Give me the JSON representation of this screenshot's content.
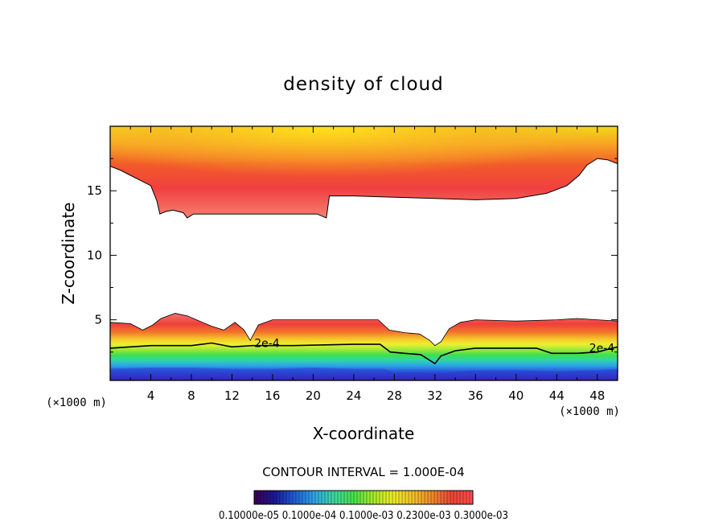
{
  "chart_data": {
    "type": "heatmap",
    "title": "density of cloud",
    "xlabel": "X-coordinate",
    "ylabel": "Z-coordinate",
    "x_unit_left": "(×1000 m)",
    "x_unit_right": "(×1000 m)",
    "xlim": [
      0,
      50
    ],
    "ylim": [
      0.3,
      20
    ],
    "x_ticks": [
      4,
      8,
      12,
      16,
      20,
      24,
      28,
      32,
      36,
      40,
      44,
      48
    ],
    "y_ticks": [
      5,
      10,
      15
    ],
    "contour_interval_text": "CONTOUR INTERVAL = 1.000E-04",
    "contour_labels": [
      {
        "text": "2e-4",
        "x": 14.2,
        "z": 2.9
      },
      {
        "text": "2e-4",
        "x": 47.2,
        "z": 2.5
      }
    ],
    "upper_layer": {
      "top_z": 20,
      "bottom_profile": [
        [
          0,
          16.9
        ],
        [
          1,
          16.6
        ],
        [
          2,
          16.2
        ],
        [
          3,
          15.8
        ],
        [
          4,
          15.4
        ],
        [
          4.6,
          14.2
        ],
        [
          4.9,
          13.2
        ],
        [
          5.5,
          13.4
        ],
        [
          6.2,
          13.5
        ],
        [
          7.2,
          13.3
        ],
        [
          7.6,
          12.9
        ],
        [
          8.2,
          13.2
        ],
        [
          9.5,
          13.2
        ],
        [
          12,
          13.2
        ],
        [
          16,
          13.2
        ],
        [
          20.4,
          13.2
        ],
        [
          21.3,
          12.9
        ],
        [
          21.6,
          14.6
        ],
        [
          24,
          14.6
        ],
        [
          28,
          14.5
        ],
        [
          32,
          14.4
        ],
        [
          36,
          14.3
        ],
        [
          40,
          14.4
        ],
        [
          43,
          14.8
        ],
        [
          45,
          15.4
        ],
        [
          46.2,
          16.2
        ],
        [
          47,
          17.0
        ],
        [
          48,
          17.5
        ],
        [
          49,
          17.4
        ],
        [
          50,
          17.1
        ]
      ],
      "core_z": 19.5
    },
    "lower_layer": {
      "bottom_z": 0.3,
      "top_profile": [
        [
          0,
          4.8
        ],
        [
          2,
          4.7
        ],
        [
          3.2,
          4.2
        ],
        [
          4.2,
          4.6
        ],
        [
          5,
          5.1
        ],
        [
          6.4,
          5.5
        ],
        [
          7.6,
          5.3
        ],
        [
          8.8,
          4.9
        ],
        [
          10,
          4.5
        ],
        [
          11.2,
          4.2
        ],
        [
          12.3,
          4.8
        ],
        [
          13.2,
          4.2
        ],
        [
          13.8,
          3.4
        ],
        [
          14.6,
          4.6
        ],
        [
          16,
          5.0
        ],
        [
          20,
          5.0
        ],
        [
          24,
          5.0
        ],
        [
          26.4,
          5.0
        ],
        [
          27.5,
          4.2
        ],
        [
          29,
          4.0
        ],
        [
          30.5,
          3.9
        ],
        [
          31.5,
          3.4
        ],
        [
          32,
          3.0
        ],
        [
          32.6,
          3.3
        ],
        [
          33.4,
          4.3
        ],
        [
          34.5,
          4.8
        ],
        [
          36,
          5.0
        ],
        [
          40,
          4.9
        ],
        [
          44,
          5.0
        ],
        [
          46,
          5.1
        ],
        [
          48,
          5.0
        ],
        [
          50,
          4.9
        ]
      ],
      "contour_2e4_profile": [
        [
          0,
          2.8
        ],
        [
          2,
          2.9
        ],
        [
          4,
          3.0
        ],
        [
          6,
          3.0
        ],
        [
          8,
          3.0
        ],
        [
          10,
          3.2
        ],
        [
          12,
          2.9
        ],
        [
          14,
          3.0
        ],
        [
          18,
          3.0
        ],
        [
          24,
          3.1
        ],
        [
          26.6,
          3.1
        ],
        [
          27.6,
          2.5
        ],
        [
          29,
          2.4
        ],
        [
          30.6,
          2.3
        ],
        [
          32,
          1.6
        ],
        [
          32.6,
          2.2
        ],
        [
          34,
          2.6
        ],
        [
          36,
          2.8
        ],
        [
          40,
          2.8
        ],
        [
          42,
          2.8
        ],
        [
          43.5,
          2.4
        ],
        [
          46,
          2.4
        ],
        [
          48,
          2.5
        ],
        [
          50,
          2.9
        ]
      ],
      "core_profile": [
        [
          0,
          1.2
        ],
        [
          4,
          1.3
        ],
        [
          8,
          1.3
        ],
        [
          12,
          1.2
        ],
        [
          16,
          1.2
        ],
        [
          20,
          1.3
        ],
        [
          24,
          1.2
        ],
        [
          27,
          1.2
        ],
        [
          28,
          0.9
        ],
        [
          31,
          0.9
        ],
        [
          32,
          0.6
        ],
        [
          33,
          0.9
        ],
        [
          36,
          1.1
        ],
        [
          40,
          1.1
        ],
        [
          44,
          1.0
        ],
        [
          48,
          1.1
        ],
        [
          50,
          1.2
        ]
      ]
    },
    "colorbar": {
      "colors": [
        "#3a0058",
        "#1a1a9a",
        "#1f5fd6",
        "#2ea6e8",
        "#3fd8a0",
        "#48e24a",
        "#a8ea28",
        "#eeec2a",
        "#f3c428",
        "#f08a2a",
        "#ee4636",
        "#ff4a4a"
      ],
      "labels_text": "0.10000e-05 0.1000e-04 0.1000e-03 0.2300e-03 0.3000e-03"
    },
    "colors": {
      "frame": "#000000",
      "text": "#000000",
      "background": "#ffffff"
    }
  }
}
